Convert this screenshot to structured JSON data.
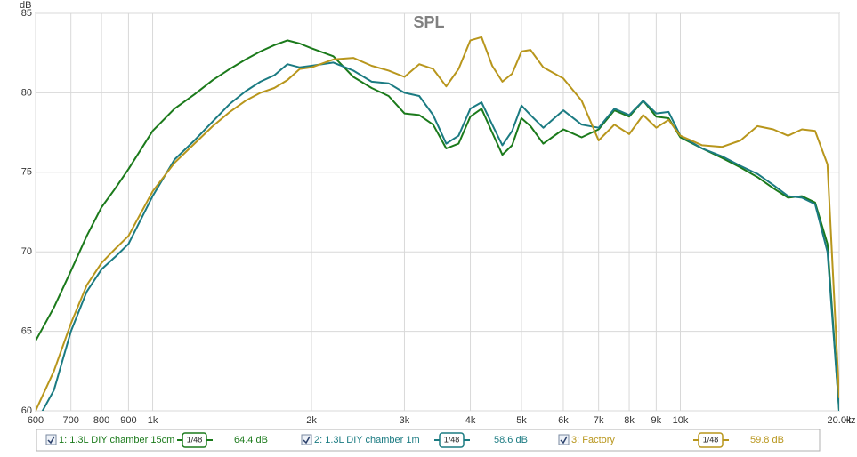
{
  "chart_data": {
    "type": "line",
    "title": "SPL",
    "ylabel": "dB",
    "xlabel": "Hz",
    "xscale": "log",
    "grid": true,
    "legend": "bottom",
    "xlim": [
      600,
      20000
    ],
    "ylim": [
      60,
      85
    ],
    "yticks": [
      60,
      65,
      70,
      75,
      80,
      85
    ],
    "xticks": [
      600,
      700,
      800,
      900,
      {
        "value": 1000,
        "label": "1k"
      },
      {
        "value": 2000,
        "label": "2k"
      },
      {
        "value": 3000,
        "label": "3k"
      },
      {
        "value": 4000,
        "label": "4k"
      },
      {
        "value": 5000,
        "label": "5k"
      },
      {
        "value": 6000,
        "label": "6k"
      },
      {
        "value": 7000,
        "label": "7k"
      },
      {
        "value": 8000,
        "label": "8k"
      },
      {
        "value": 9000,
        "label": "9k"
      },
      {
        "value": 10000,
        "label": "10k"
      },
      {
        "value": 20000,
        "label": "20.0k"
      }
    ],
    "x": [
      600,
      650,
      700,
      750,
      800,
      850,
      900,
      1000,
      1100,
      1200,
      1300,
      1400,
      1500,
      1600,
      1700,
      1800,
      1900,
      2000,
      2200,
      2400,
      2600,
      2800,
      3000,
      3200,
      3400,
      3600,
      3800,
      4000,
      4200,
      4400,
      4600,
      4800,
      5000,
      5200,
      5500,
      6000,
      6500,
      7000,
      7500,
      8000,
      8500,
      9000,
      9500,
      10000,
      11000,
      12000,
      13000,
      14000,
      15000,
      16000,
      17000,
      18000,
      19000,
      20000
    ],
    "series": [
      {
        "name": "1: 1.3L DIY chamber 15cm",
        "color": "#1b7a1b",
        "smoothing": "1/48",
        "level": "64.4 dB",
        "values": [
          64.4,
          66.5,
          68.8,
          71.0,
          72.8,
          74.0,
          75.2,
          77.6,
          79.0,
          79.9,
          80.8,
          81.5,
          82.1,
          82.6,
          83.0,
          83.3,
          83.1,
          82.8,
          82.3,
          81.0,
          80.3,
          79.8,
          78.7,
          78.6,
          78.0,
          76.5,
          76.8,
          78.5,
          79.0,
          77.5,
          76.1,
          76.7,
          78.4,
          77.9,
          76.8,
          77.7,
          77.2,
          77.7,
          78.9,
          78.5,
          79.5,
          78.5,
          78.4,
          77.2,
          76.5,
          75.9,
          75.3,
          74.7,
          74.0,
          73.4,
          73.5,
          73.1,
          70.5,
          60.0
        ]
      },
      {
        "name": "2: 1.3L DIY chamber 1m",
        "color": "#1b7b82",
        "smoothing": "1/48",
        "level": "58.6 dB",
        "values": [
          59.2,
          61.3,
          65.0,
          67.5,
          68.9,
          69.7,
          70.5,
          73.5,
          75.8,
          77.0,
          78.2,
          79.3,
          80.1,
          80.7,
          81.1,
          81.8,
          81.6,
          81.7,
          81.9,
          81.4,
          80.7,
          80.6,
          80.0,
          79.8,
          78.6,
          76.8,
          77.3,
          79.0,
          79.4,
          78.0,
          76.7,
          77.6,
          79.2,
          78.6,
          77.8,
          78.9,
          78.0,
          77.8,
          79.0,
          78.6,
          79.5,
          78.7,
          78.8,
          77.3,
          76.5,
          76.0,
          75.4,
          74.9,
          74.2,
          73.5,
          73.4,
          73.0,
          70.0,
          60.0
        ]
      },
      {
        "name": "3: Factory",
        "color": "#b8961c",
        "smoothing": "1/48",
        "level": "59.8 dB",
        "values": [
          60.0,
          62.5,
          65.5,
          67.9,
          69.3,
          70.2,
          71.0,
          73.8,
          75.6,
          76.8,
          77.9,
          78.8,
          79.5,
          80.0,
          80.3,
          80.8,
          81.5,
          81.6,
          82.1,
          82.2,
          81.7,
          81.4,
          81.0,
          81.8,
          81.5,
          80.4,
          81.5,
          83.3,
          83.5,
          81.7,
          80.7,
          81.2,
          82.6,
          82.7,
          81.6,
          80.9,
          79.5,
          77.0,
          78.0,
          77.4,
          78.6,
          77.8,
          78.3,
          77.3,
          76.7,
          76.6,
          77.0,
          77.9,
          77.7,
          77.3,
          77.7,
          77.6,
          75.5,
          60.8
        ]
      }
    ]
  }
}
